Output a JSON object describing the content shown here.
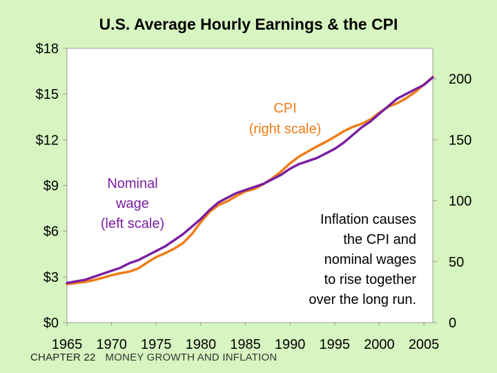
{
  "slide": {
    "title": "U.S. Average Hourly Earnings & the CPI",
    "footer_chapter": "CHAPTER 22",
    "footer_subject": "MONEY GROWTH AND INFLATION"
  },
  "colors": {
    "background": "#d6f5c0",
    "plot_area": "#ffffff",
    "wage_line": "#7a1fa0",
    "cpi_line": "#f07c16"
  },
  "chart_data": {
    "type": "line",
    "title": "U.S. Average Hourly Earnings & the CPI",
    "x": [
      1965,
      1966,
      1967,
      1968,
      1969,
      1970,
      1971,
      1972,
      1973,
      1974,
      1975,
      1976,
      1977,
      1978,
      1979,
      1980,
      1981,
      1982,
      1983,
      1984,
      1985,
      1986,
      1987,
      1988,
      1989,
      1990,
      1991,
      1992,
      1993,
      1994,
      1995,
      1996,
      1997,
      1998,
      1999,
      2000,
      2001,
      2002,
      2003,
      2004,
      2005,
      2006
    ],
    "xlim": [
      1965,
      2006
    ],
    "x_ticks": [
      "1965",
      "1970",
      "1975",
      "1980",
      "1985",
      "1990",
      "1995",
      "2000",
      "2005"
    ],
    "left_axis": {
      "ticks": [
        "$0",
        "$3",
        "$6",
        "$9",
        "$12",
        "$15",
        "$18"
      ],
      "ylim": [
        0,
        18
      ]
    },
    "right_axis": {
      "ticks": [
        "0",
        "50",
        "100",
        "150",
        "200"
      ],
      "ylim": [
        0,
        225
      ]
    },
    "series": [
      {
        "name": "Nominal wage",
        "axis": "left",
        "values": [
          2.6,
          2.7,
          2.8,
          3.0,
          3.2,
          3.4,
          3.6,
          3.9,
          4.1,
          4.4,
          4.7,
          5.0,
          5.4,
          5.8,
          6.3,
          6.8,
          7.4,
          7.9,
          8.2,
          8.5,
          8.7,
          8.9,
          9.1,
          9.4,
          9.7,
          10.1,
          10.4,
          10.6,
          10.8,
          11.1,
          11.4,
          11.8,
          12.3,
          12.8,
          13.2,
          13.7,
          14.2,
          14.7,
          15.0,
          15.3,
          15.6,
          16.1
        ]
      },
      {
        "name": "CPI",
        "axis": "right",
        "values": [
          31.5,
          32.4,
          33.4,
          34.8,
          36.7,
          38.8,
          40.5,
          41.8,
          44.4,
          49.3,
          53.8,
          56.9,
          60.6,
          65.2,
          72.6,
          82.4,
          90.9,
          96.5,
          99.6,
          103.9,
          107.6,
          109.6,
          113.6,
          118.3,
          124.0,
          130.7,
          136.2,
          140.3,
          144.5,
          148.2,
          152.4,
          156.9,
          160.5,
          163.0,
          166.6,
          172.2,
          177.1,
          179.9,
          184.0,
          188.9,
          195.3,
          201.6
        ]
      }
    ],
    "annotations": {
      "cpi_label": [
        "CPI",
        "(right scale)"
      ],
      "wage_label": [
        "Nominal",
        "wage",
        "(left scale)"
      ],
      "note": [
        "Inflation causes",
        "the CPI and",
        "nominal wages",
        "to rise together",
        "over the long run."
      ]
    }
  }
}
